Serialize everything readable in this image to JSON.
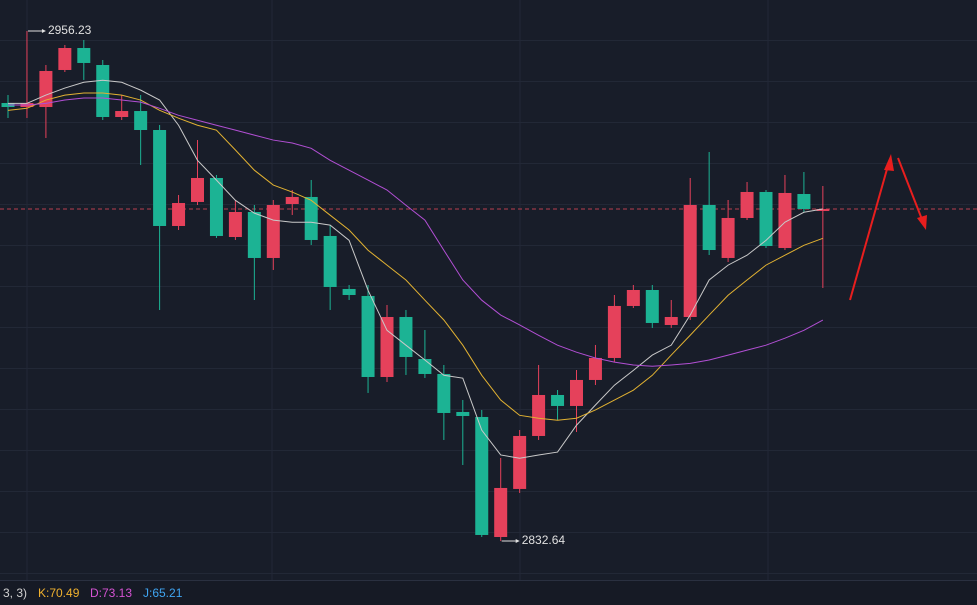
{
  "chart_data": {
    "type": "candlestick",
    "up_color": "#e5415b",
    "down_color": "#1cb394",
    "ylim": [
      2823.2,
      2963.74
    ],
    "open": [
      2938.78,
      2937.81,
      2937.81,
      2946.78,
      2952.11,
      2947.99,
      2935.39,
      2936.84,
      2932.24,
      2908.98,
      2914.8,
      2920.61,
      2906.31,
      2912.37,
      2901.23,
      2914.31,
      2916.01,
      2906.56,
      2893.72,
      2892.02,
      2872.39,
      2886.93,
      2876.75,
      2873.12,
      2863.91,
      2862.7,
      2833.62,
      2845.26,
      2858.1,
      2868.03,
      2865.37,
      2871.67,
      2877.0,
      2889.6,
      2893.47,
      2884.99,
      2886.93,
      2914.07,
      2901.23,
      2910.92,
      2917.22,
      2903.65,
      2916.73,
      2912.61
    ],
    "high": [
      2940.72,
      2956.23,
      2947.99,
      2952.84,
      2954.05,
      2949.2,
      2940.72,
      2940.72,
      2933.45,
      2916.49,
      2929.82,
      2921.34,
      2915.28,
      2914.07,
      2915.28,
      2917.7,
      2920.13,
      2909.22,
      2894.68,
      2894.68,
      2889.84,
      2888.63,
      2883.78,
      2875.3,
      2866.82,
      2864.4,
      2852.77,
      2859.55,
      2875.3,
      2869.24,
      2874.09,
      2880.15,
      2892.26,
      2894.68,
      2894.68,
      2891.05,
      2920.61,
      2926.91,
      2915.28,
      2919.64,
      2917.7,
      2921.34,
      2922.06,
      2918.67
    ],
    "low": [
      2935.15,
      2935.15,
      2930.3,
      2946.29,
      2944.36,
      2934.66,
      2934.66,
      2923.76,
      2888.63,
      2908.01,
      2914.07,
      2906.07,
      2905.59,
      2891.05,
      2898.32,
      2911.65,
      2904.38,
      2888.63,
      2891.05,
      2868.52,
      2871.18,
      2872.88,
      2872.15,
      2857.13,
      2851.07,
      2833.62,
      2832.64,
      2844.29,
      2857.13,
      2861.97,
      2859.07,
      2870.45,
      2876.03,
      2889.11,
      2884.27,
      2884.27,
      2886.2,
      2901.95,
      2900.26,
      2910.43,
      2903.65,
      2903.16,
      2912.37,
      2893.96
    ],
    "close": [
      2937.81,
      2938.78,
      2946.54,
      2952.11,
      2948.48,
      2935.39,
      2936.84,
      2932.24,
      2908.98,
      2914.55,
      2920.61,
      2906.56,
      2912.37,
      2901.23,
      2914.07,
      2916.01,
      2905.59,
      2894.2,
      2892.26,
      2872.39,
      2886.93,
      2877.24,
      2873.12,
      2863.67,
      2862.94,
      2834.11,
      2845.5,
      2858.1,
      2868.03,
      2865.37,
      2871.67,
      2877.0,
      2889.6,
      2893.47,
      2885.48,
      2886.93,
      2914.07,
      2903.16,
      2910.92,
      2917.22,
      2904.13,
      2916.98,
      2913.1,
      2913.1
    ],
    "lines": [
      {
        "color": "#c9c9c9",
        "values": [
          2938.7,
          2938.7,
          2940.7,
          2942.4,
          2943.8,
          2944.3,
          2943.8,
          2941.9,
          2939.5,
          2933.4,
          2924.9,
          2920.1,
          2915.2,
          2912.1,
          2910.4,
          2909.9,
          2909.9,
          2909.2,
          2905.5,
          2893.4,
          2883.7,
          2880.1,
          2876.5,
          2872.8,
          2872.1,
          2859.5,
          2853.5,
          2852.7,
          2853.5,
          2854.2,
          2860.7,
          2865.6,
          2870.4,
          2874.0,
          2877.7,
          2880.1,
          2887.4,
          2895.9,
          2899.5,
          2901.9,
          2905.5,
          2909.9,
          2912.3,
          2913.1
        ]
      },
      {
        "color": "#e2b232",
        "values": [
          2937.0,
          2937.5,
          2939.5,
          2940.7,
          2941.2,
          2941.2,
          2940.7,
          2939.5,
          2937.0,
          2935.1,
          2933.4,
          2932.2,
          2927.4,
          2922.5,
          2918.9,
          2917.2,
          2915.2,
          2911.6,
          2908.0,
          2903.1,
          2899.5,
          2895.9,
          2891.0,
          2886.2,
          2880.1,
          2872.8,
          2866.8,
          2863.1,
          2862.4,
          2861.9,
          2862.4,
          2864.4,
          2866.8,
          2869.2,
          2872.8,
          2877.7,
          2882.5,
          2887.4,
          2892.2,
          2895.9,
          2899.5,
          2901.9,
          2904.3,
          2906.0
        ]
      },
      {
        "color": "#b24fd4",
        "values": [
          2938.3,
          2938.3,
          2938.7,
          2939.5,
          2940.0,
          2940.0,
          2939.5,
          2939.0,
          2937.5,
          2935.8,
          2934.6,
          2933.4,
          2932.2,
          2931.0,
          2929.8,
          2929.1,
          2927.8,
          2924.9,
          2922.5,
          2920.1,
          2917.7,
          2914.0,
          2910.4,
          2903.1,
          2895.9,
          2891.0,
          2887.4,
          2885.0,
          2882.5,
          2880.1,
          2878.4,
          2877.0,
          2876.0,
          2875.3,
          2875.0,
          2875.3,
          2875.7,
          2876.5,
          2877.7,
          2878.9,
          2880.1,
          2881.8,
          2883.7,
          2886.2
        ]
      }
    ]
  },
  "indicator_bar": {
    "params": "3, 3)",
    "items": [
      {
        "text": "K:70.49",
        "color": "#f0b12e"
      },
      {
        "text": "D:73.13",
        "color": "#d553d3"
      },
      {
        "text": "J:65.21",
        "color": "#3fa5f2"
      }
    ]
  }
}
